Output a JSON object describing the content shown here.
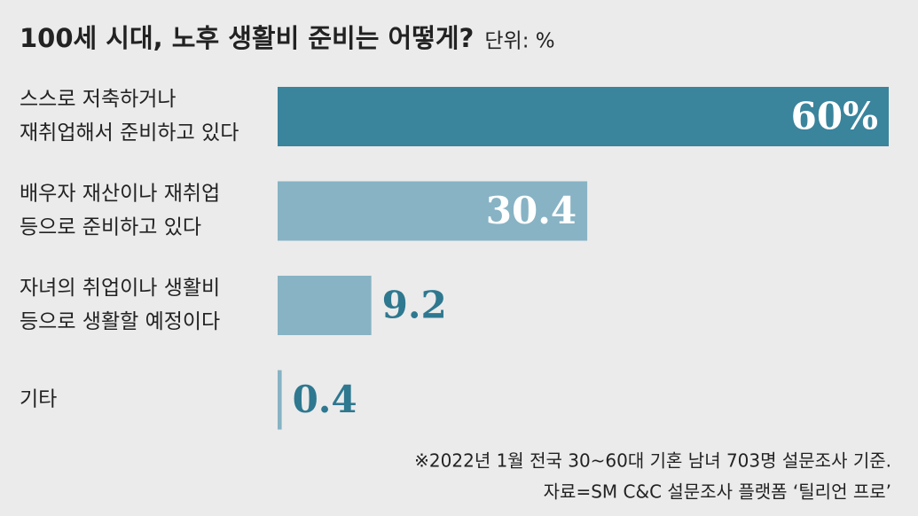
{
  "chart_data": {
    "type": "bar",
    "orientation": "horizontal",
    "title": "100세 시대, 노후 생활비 준비는 어떻게?",
    "unit": "단위: %",
    "categories": [
      [
        "스스로 저축하거나",
        "재취업해서 준비하고 있다"
      ],
      [
        "배우자 재산이나 재취업",
        "등으로 준비하고 있다"
      ],
      [
        "자녀의 취업이나 생활비",
        "등으로 생활할 예정이다"
      ],
      [
        "기타"
      ]
    ],
    "values": [
      60,
      30.4,
      9.2,
      0.4
    ],
    "value_labels": [
      "60%",
      "30.4",
      "9.2",
      "0.4"
    ],
    "colors": [
      "#3a849c",
      "#87b3c4",
      "#87b3c4",
      "#87b3c4"
    ],
    "notes": [
      "※2022년 1월 전국 30~60대 기혼 남녀 703명 설문조사 기준.",
      "자료=SM C&C 설문조사 플랫폼 ‘틸리언 프로’"
    ]
  }
}
